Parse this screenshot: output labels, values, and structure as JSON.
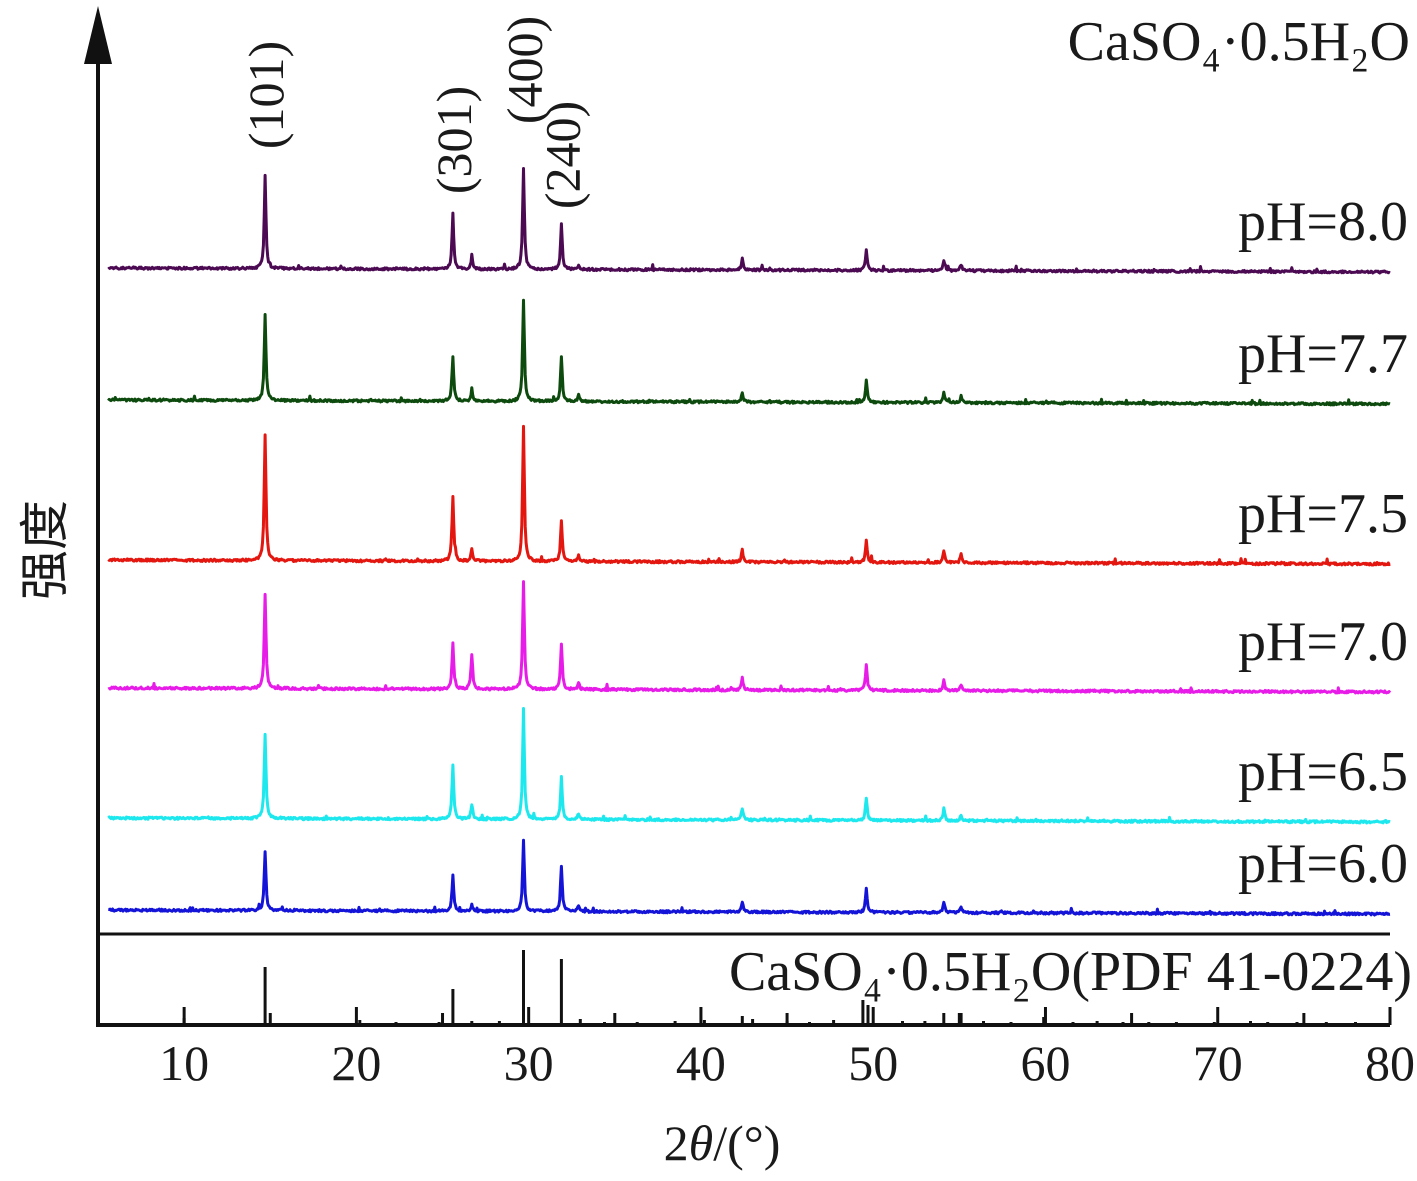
{
  "chart_data": {
    "type": "line",
    "title": "CaSO₄·0.5H₂O",
    "xlabel_prefix": "2",
    "xlabel_theta": "θ",
    "xlabel_suffix": "/(°)",
    "ylabel": "强度",
    "xlim": [
      5,
      80
    ],
    "xticks": [
      "10",
      "20",
      "30",
      "40",
      "50",
      "60",
      "70",
      "80"
    ],
    "grid": false,
    "hkl_annotations": [
      {
        "label": "(101)",
        "x": 14.7
      },
      {
        "label": "(301)",
        "x": 25.6
      },
      {
        "label": "(400)",
        "x": 29.7
      },
      {
        "label": "(240)",
        "x": 31.9
      }
    ],
    "peaks_2theta": [
      14.7,
      25.6,
      26.7,
      29.7,
      31.9,
      32.9,
      42.4,
      49.6,
      54.1,
      55.1
    ],
    "series": [
      {
        "name": "pH=8.0",
        "color": "#4b0a52",
        "values": [
          45,
          35,
          5,
          5,
          48,
          50,
          8,
          12,
          12,
          6,
          6,
          3,
          3,
          3,
          4
        ]
      },
      {
        "name": "pH=7.7",
        "color": "#0d4a0d",
        "values": [
          45,
          35,
          5,
          7,
          48,
          50,
          8,
          10,
          12,
          7,
          3,
          3,
          4,
          3,
          3
        ]
      },
      {
        "name": "pH=7.5",
        "color": "#e3170f",
        "values": [
          45,
          35,
          5,
          7,
          49,
          50,
          8,
          10,
          12,
          7,
          5,
          5,
          4,
          3,
          4
        ]
      },
      {
        "name": "pH=7.0",
        "color": "#e81ce8",
        "values": [
          45,
          35,
          5,
          7,
          48,
          50,
          8,
          10,
          12,
          7,
          5,
          5,
          4,
          3,
          4
        ]
      },
      {
        "name": "pH=6.5",
        "color": "#1de8ee",
        "values": [
          45,
          35,
          5,
          7,
          48,
          50,
          8,
          10,
          12,
          6,
          5,
          5,
          4,
          3,
          4
        ]
      },
      {
        "name": "pH=6.0",
        "color": "#1414d8",
        "values": [
          45,
          35,
          5,
          7,
          48,
          50,
          8,
          10,
          12,
          6,
          5,
          5,
          4,
          3,
          4
        ]
      }
    ],
    "reference": {
      "label": "CaSO₄·0.5H₂O(PDF 41-0224)",
      "color": "#111111"
    }
  }
}
